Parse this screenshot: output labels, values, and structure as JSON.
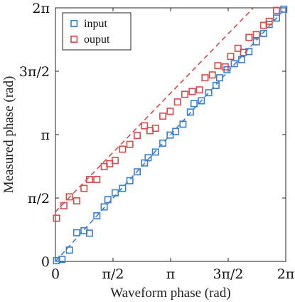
{
  "chart_data": {
    "type": "scatter",
    "xlabel": "Waveform phase (rad)",
    "ylabel": "Measured phase (rad)",
    "xlim": [
      0,
      6.2832
    ],
    "ylim": [
      0,
      6.2832
    ],
    "x_tick_values": [
      0,
      1.5708,
      3.1416,
      4.7124,
      6.2832
    ],
    "x_tick_labels": [
      "0",
      "π/2",
      "π",
      "3π/2",
      "2π"
    ],
    "y_tick_values": [
      0,
      1.5708,
      3.1416,
      4.7124,
      6.2832
    ],
    "y_tick_labels": [
      "0",
      "π/2",
      "π",
      "3π/2",
      "2π"
    ],
    "grid": false,
    "legend_position": "top-left",
    "series": [
      {
        "name": "input",
        "color": "#3a7fd0",
        "marker": "square",
        "fit_line": {
          "style": "dashed",
          "start": [
            0,
            0
          ],
          "end": [
            6.2832,
            6.2832
          ]
        },
        "points": [
          [
            0.03,
            0.02
          ],
          [
            0.18,
            0.05
          ],
          [
            0.38,
            0.28
          ],
          [
            0.58,
            0.71
          ],
          [
            0.78,
            0.76
          ],
          [
            0.93,
            0.7
          ],
          [
            1.13,
            1.13
          ],
          [
            1.33,
            1.35
          ],
          [
            1.43,
            1.53
          ],
          [
            1.63,
            1.7
          ],
          [
            1.83,
            1.81
          ],
          [
            2.03,
            2.0
          ],
          [
            2.23,
            2.22
          ],
          [
            2.43,
            2.44
          ],
          [
            2.53,
            2.57
          ],
          [
            2.73,
            2.71
          ],
          [
            2.93,
            2.93
          ],
          [
            3.13,
            3.13
          ],
          [
            3.28,
            3.22
          ],
          [
            3.48,
            3.4
          ],
          [
            3.68,
            3.7
          ],
          [
            3.78,
            3.91
          ],
          [
            3.98,
            3.98
          ],
          [
            4.18,
            4.18
          ],
          [
            4.38,
            4.36
          ],
          [
            4.48,
            4.55
          ],
          [
            4.68,
            4.75
          ],
          [
            4.88,
            4.9
          ],
          [
            5.08,
            5.0
          ],
          [
            5.28,
            5.2
          ],
          [
            5.48,
            5.44
          ],
          [
            5.68,
            5.65
          ],
          [
            5.83,
            5.87
          ],
          [
            6.03,
            6.03
          ],
          [
            6.23,
            6.25
          ]
        ]
      },
      {
        "name": "ouput",
        "color": "#d94a4a",
        "marker": "square",
        "fit_line": {
          "style": "dashed",
          "start": [
            0,
            1.23
          ],
          "end": [
            5.4,
            6.2832
          ]
        },
        "points": [
          [
            0.03,
            1.07
          ],
          [
            0.23,
            1.38
          ],
          [
            0.38,
            1.6
          ],
          [
            0.58,
            1.5
          ],
          [
            0.78,
            1.81
          ],
          [
            0.93,
            2.03
          ],
          [
            1.13,
            2.03
          ],
          [
            1.33,
            2.35
          ],
          [
            1.48,
            2.42
          ],
          [
            1.63,
            2.5
          ],
          [
            1.83,
            2.78
          ],
          [
            2.03,
            2.9
          ],
          [
            2.23,
            3.12
          ],
          [
            2.43,
            3.36
          ],
          [
            2.58,
            3.24
          ],
          [
            2.73,
            3.3
          ],
          [
            2.93,
            3.6
          ],
          [
            3.13,
            3.72
          ],
          [
            3.33,
            3.95
          ],
          [
            3.53,
            4.14
          ],
          [
            3.73,
            4.21
          ],
          [
            3.93,
            4.25
          ],
          [
            4.08,
            4.55
          ],
          [
            4.28,
            4.62
          ],
          [
            4.43,
            4.85
          ],
          [
            4.63,
            4.82
          ],
          [
            4.78,
            5.08
          ],
          [
            4.98,
            5.28
          ],
          [
            5.13,
            5.18
          ],
          [
            5.28,
            5.55
          ],
          [
            5.48,
            5.62
          ],
          [
            5.68,
            5.85
          ],
          [
            5.83,
            5.95
          ],
          [
            6.03,
            6.22
          ]
        ]
      }
    ]
  }
}
